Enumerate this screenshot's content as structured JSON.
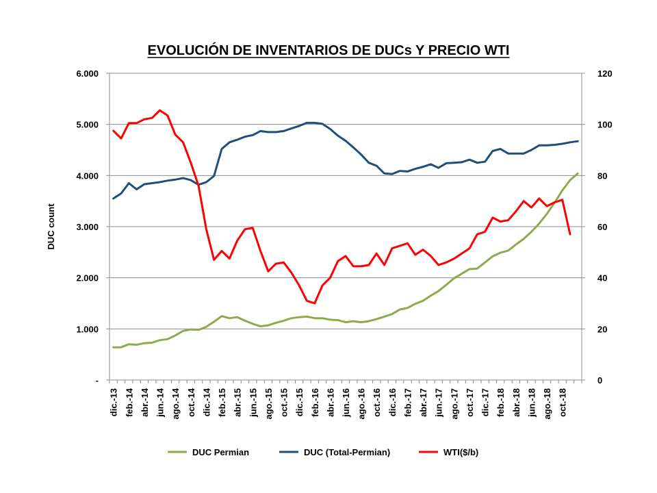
{
  "chart_data": {
    "type": "line",
    "title": "EVOLUCIÓN DE INVENTARIOS DE DUCs Y PRECIO WTI",
    "ylabel": "DUC count",
    "ylabel_right": "",
    "xlabel": "",
    "ylim": [
      0,
      6000
    ],
    "ylim_right": [
      0,
      120
    ],
    "yticks": [
      {
        "value": 0,
        "label": "-"
      },
      {
        "value": 1000,
        "label": "1.000"
      },
      {
        "value": 2000,
        "label": "2.000"
      },
      {
        "value": 3000,
        "label": "3.000"
      },
      {
        "value": 4000,
        "label": "4.000"
      },
      {
        "value": 5000,
        "label": "5.000"
      },
      {
        "value": 6000,
        "label": "6.000"
      }
    ],
    "yticks_right": [
      {
        "value": 0,
        "label": "0"
      },
      {
        "value": 20,
        "label": "20"
      },
      {
        "value": 40,
        "label": "40"
      },
      {
        "value": 60,
        "label": "60"
      },
      {
        "value": 80,
        "label": "80"
      },
      {
        "value": 100,
        "label": "100"
      },
      {
        "value": 120,
        "label": "120"
      }
    ],
    "x_tick_labels": [
      "dic.-13",
      "feb.-14",
      "abr.-14",
      "jun.-14",
      "ago.-14",
      "oct.-14",
      "dic.-14",
      "feb.-15",
      "abr.-15",
      "jun.-15",
      "ago.-15",
      "oct.-15",
      "dic.-15",
      "feb.-16",
      "abr.-16",
      "jun.-16",
      "ago.-16",
      "oct.-16",
      "dic.-16",
      "feb.-17",
      "abr.-17",
      "jun.-17",
      "ago.-17",
      "oct.-17",
      "dic.-17",
      "feb.-18",
      "abr.-18",
      "jun.-18",
      "ago.-18",
      "oct.-18"
    ],
    "series": [
      {
        "name": "DUC Permian",
        "axis": "left",
        "color": "#8faa4c",
        "values": [
          640,
          640,
          700,
          690,
          720,
          730,
          780,
          800,
          870,
          960,
          990,
          980,
          1040,
          1140,
          1250,
          1210,
          1230,
          1160,
          1100,
          1050,
          1070,
          1120,
          1160,
          1210,
          1230,
          1240,
          1210,
          1210,
          1180,
          1170,
          1130,
          1150,
          1130,
          1150,
          1190,
          1240,
          1290,
          1380,
          1410,
          1490,
          1550,
          1650,
          1740,
          1860,
          1990,
          2080,
          2170,
          2180,
          2300,
          2420,
          2490,
          2530,
          2650,
          2760,
          2900,
          3060,
          3250,
          3470,
          3710,
          3910,
          4040
        ]
      },
      {
        "name": "DUC (Total-Permian)",
        "axis": "left",
        "color": "#1f4e79",
        "values": [
          3550,
          3650,
          3850,
          3730,
          3830,
          3850,
          3870,
          3900,
          3920,
          3950,
          3910,
          3820,
          3870,
          3990,
          4520,
          4650,
          4700,
          4760,
          4790,
          4870,
          4850,
          4850,
          4870,
          4920,
          4970,
          5030,
          5030,
          5010,
          4910,
          4780,
          4680,
          4550,
          4410,
          4250,
          4190,
          4040,
          4030,
          4090,
          4080,
          4130,
          4170,
          4220,
          4150,
          4240,
          4250,
          4260,
          4310,
          4250,
          4270,
          4480,
          4520,
          4430,
          4430,
          4430,
          4500,
          4590,
          4590,
          4600,
          4620,
          4650,
          4670
        ]
      },
      {
        "name": "WTI($/b)",
        "axis": "right",
        "color": "#ff0000",
        "values": [
          97.5,
          94.5,
          100.5,
          100.5,
          102,
          102.5,
          105.5,
          103.5,
          96,
          93,
          85,
          76,
          59,
          47,
          50.5,
          47.5,
          54.5,
          59,
          59.5,
          50.5,
          42.5,
          45.5,
          46,
          42,
          37,
          31,
          30,
          37,
          40,
          46.5,
          48.5,
          44.5,
          44.5,
          45,
          49.5,
          45,
          51.5,
          52.5,
          53.5,
          49,
          51,
          48.5,
          45,
          46,
          47.5,
          49.5,
          51.5,
          57,
          58,
          63.5,
          62,
          62.5,
          66,
          70,
          67.5,
          71,
          68,
          69.5,
          70.5,
          57
        ]
      }
    ]
  }
}
